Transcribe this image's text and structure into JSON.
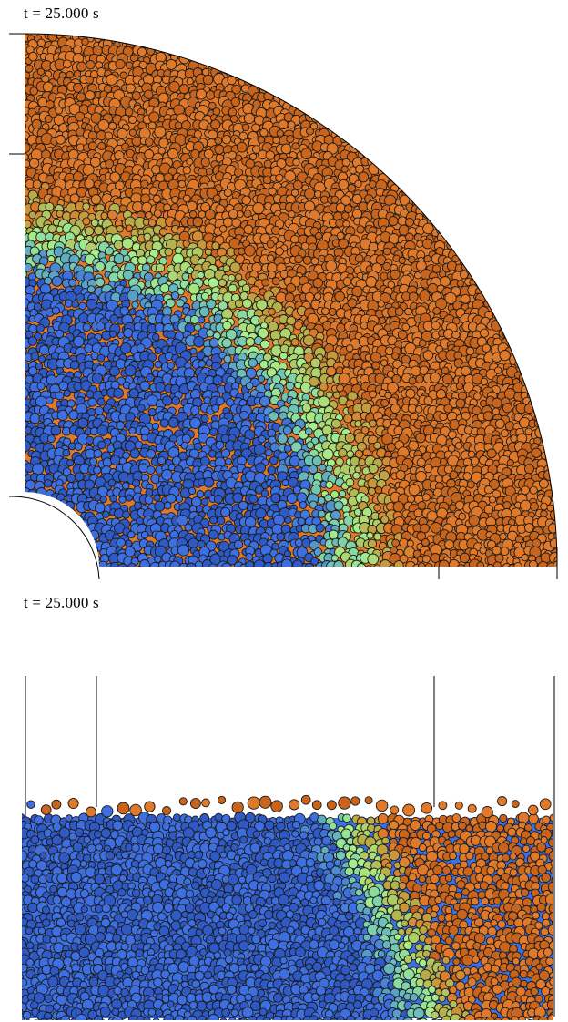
{
  "panels": [
    {
      "name": "top-panel",
      "time_label": "t = 25.000 s",
      "view": "quarter-annulus top view"
    },
    {
      "name": "bottom-panel",
      "time_label": "t = 25.000 s",
      "view": "side cross-section"
    }
  ],
  "colors": {
    "blue": "#3d6fe0",
    "blue_dark": "#2f5ac6",
    "teal": "#6fc6b4",
    "green": "#a8f08a",
    "olive": "#b6b04a",
    "orange": "#e07a2a",
    "orange_dark": "#c8641c",
    "outline": "#1a1a1a",
    "background": "#ffffff"
  }
}
